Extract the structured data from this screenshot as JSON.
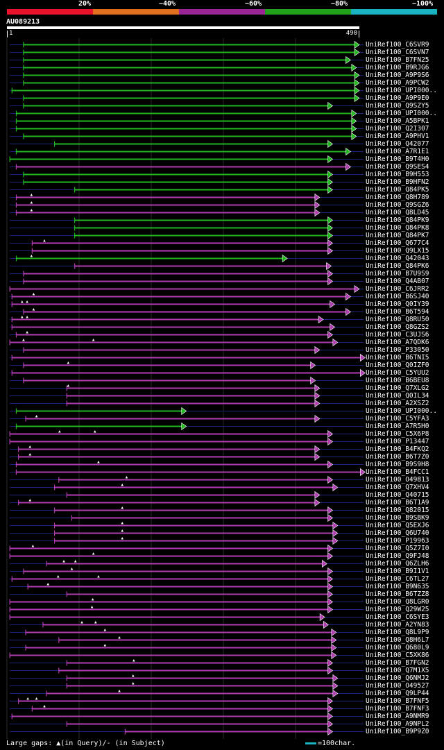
{
  "legend": {
    "labels": [
      "20%",
      "~40%",
      "~60%",
      "~80%",
      "~100%"
    ],
    "colors": [
      "#e8132b",
      "#e07020",
      "#9a2696",
      "#23a01b",
      "#1ab3c0"
    ]
  },
  "query": {
    "id": "AU089213",
    "start": "1",
    "end": "490"
  },
  "colors": {
    "green": "#22b81f",
    "magenta": "#b03eb0",
    "gap": "#1a237e",
    "grid": "#2a2a2a",
    "marker": "#ffffff"
  },
  "hits": [
    {
      "label": "UniRef100_C6SVR9",
      "color": "green",
      "s": 24,
      "e": 490
    },
    {
      "label": "UniRef100_C6SVN7",
      "color": "green",
      "s": 24,
      "e": 490
    },
    {
      "label": "UniRef100_B7FN25",
      "color": "green",
      "s": 24,
      "e": 478
    },
    {
      "label": "UniRef100_B9RJG6",
      "color": "green",
      "s": 24,
      "e": 486
    },
    {
      "label": "UniRef100_A9P9S6",
      "color": "green",
      "s": 24,
      "e": 490
    },
    {
      "label": "UniRef100_A9PCW2",
      "color": "green",
      "s": 24,
      "e": 490
    },
    {
      "label": "UniRef100_UPI000..",
      "color": "green",
      "s": 8,
      "e": 490
    },
    {
      "label": "UniRef100_A9P9E0",
      "color": "green",
      "s": 24,
      "e": 490
    },
    {
      "label": "UniRef100_Q9SZY5",
      "color": "green",
      "s": 24,
      "e": 453
    },
    {
      "label": "UniRef100_UPI000..",
      "color": "green",
      "s": 14,
      "e": 486
    },
    {
      "label": "UniRef100_A5BPK1",
      "color": "green",
      "s": 14,
      "e": 486
    },
    {
      "label": "UniRef100_Q2I307",
      "color": "green",
      "s": 14,
      "e": 486
    },
    {
      "label": "UniRef100_A9PHV1",
      "color": "green",
      "s": 24,
      "e": 486
    },
    {
      "label": "UniRef100_Q42077",
      "color": "green",
      "s": 67,
      "e": 453
    },
    {
      "label": "UniRef100_A7R1E1",
      "color": "green",
      "s": 14,
      "e": 478
    },
    {
      "label": "UniRef100_B9T4H0",
      "color": "green",
      "s": 5,
      "e": 453
    },
    {
      "label": "UniRef100_Q9SES4",
      "color": "magenta",
      "s": 14,
      "e": 478
    },
    {
      "label": "UniRef100_B9H553",
      "color": "green",
      "s": 24,
      "e": 453
    },
    {
      "label": "UniRef100_B9HFN2",
      "color": "green",
      "s": 24,
      "e": 453
    },
    {
      "label": "UniRef100_Q84PK5",
      "color": "green",
      "s": 95,
      "e": 453
    },
    {
      "label": "UniRef100_Q8H789",
      "color": "magenta",
      "s": 14,
      "e": 435,
      "m": [
        35
      ]
    },
    {
      "label": "UniRef100_Q9SGZ6",
      "color": "magenta",
      "s": 14,
      "e": 435,
      "m": [
        35
      ]
    },
    {
      "label": "UniRef100_Q8LD45",
      "color": "magenta",
      "s": 14,
      "e": 435,
      "m": [
        35
      ]
    },
    {
      "label": "UniRef100_Q84PK9",
      "color": "green",
      "s": 95,
      "e": 453
    },
    {
      "label": "UniRef100_Q84PK8",
      "color": "green",
      "s": 95,
      "e": 453
    },
    {
      "label": "UniRef100_Q84PK7",
      "color": "green",
      "s": 95,
      "e": 453
    },
    {
      "label": "UniRef100_Q677C4",
      "color": "magenta",
      "s": 36,
      "e": 453,
      "m": [
        53
      ]
    },
    {
      "label": "UniRef100_Q9LX15",
      "color": "magenta",
      "s": 36,
      "e": 453
    },
    {
      "label": "UniRef100_Q42043",
      "color": "green",
      "s": 14,
      "e": 390,
      "m": [
        35
      ]
    },
    {
      "label": "UniRef100_Q84PK6",
      "color": "magenta",
      "s": 95,
      "e": 451
    },
    {
      "label": "UniRef100_B7U9S9",
      "color": "magenta",
      "s": 24,
      "e": 453
    },
    {
      "label": "UniRef100_Q4AB07",
      "color": "magenta",
      "s": 24,
      "e": 453
    },
    {
      "label": "UniRef100_C6JRR2",
      "color": "magenta",
      "s": 5,
      "e": 490
    },
    {
      "label": "UniRef100_B6SJ40",
      "color": "magenta",
      "s": 8,
      "e": 478,
      "m": [
        38
      ]
    },
    {
      "label": "UniRef100_Q0IY39",
      "color": "magenta",
      "s": 8,
      "e": 456,
      "m": [
        22,
        29
      ]
    },
    {
      "label": "UniRef100_B6T594",
      "color": "magenta",
      "s": 24,
      "e": 478,
      "m": [
        38
      ]
    },
    {
      "label": "UniRef100_Q8RU50",
      "color": "magenta",
      "s": 8,
      "e": 440,
      "m": [
        22,
        29
      ]
    },
    {
      "label": "UniRef100_Q8GZS2",
      "color": "magenta",
      "s": 8,
      "e": 456
    },
    {
      "label": "UniRef100_C3UJS6",
      "color": "magenta",
      "s": 14,
      "e": 453,
      "m": [
        29
      ]
    },
    {
      "label": "UniRef100_A7QDK6",
      "color": "magenta",
      "s": 5,
      "e": 460,
      "m": [
        24,
        121
      ]
    },
    {
      "label": "UniRef100_P33050",
      "color": "magenta",
      "s": 24,
      "e": 435
    },
    {
      "label": "UniRef100_B6TNI5",
      "color": "magenta",
      "s": 8,
      "e": 498
    },
    {
      "label": "UniRef100_Q0IZF0",
      "color": "magenta",
      "s": 24,
      "e": 429,
      "m": [
        86
      ]
    },
    {
      "label": "UniRef100_C5YUU2",
      "color": "magenta",
      "s": 8,
      "e": 498
    },
    {
      "label": "UniRef100_B6BEU8",
      "color": "magenta",
      "s": 24,
      "e": 429
    },
    {
      "label": "UniRef100_Q7XLG2",
      "color": "magenta",
      "s": 84,
      "e": 435,
      "m": [
        86
      ]
    },
    {
      "label": "UniRef100_Q0IL34",
      "color": "magenta",
      "s": 84,
      "e": 435
    },
    {
      "label": "UniRef100_A2XSZ2",
      "color": "magenta",
      "s": 84,
      "e": 435
    },
    {
      "label": "UniRef100_UPI000..",
      "color": "green",
      "s": 14,
      "e": 250
    },
    {
      "label": "UniRef100_C5YFA3",
      "color": "magenta",
      "s": 27,
      "e": 435,
      "m": [
        42
      ]
    },
    {
      "label": "UniRef100_A7R5H0",
      "color": "green",
      "s": 14,
      "e": 250
    },
    {
      "label": "UniRef100_C5X6P8",
      "color": "magenta",
      "s": 5,
      "e": 453,
      "m": [
        74,
        123
      ]
    },
    {
      "label": "UniRef100_P13447",
      "color": "magenta",
      "s": 5,
      "e": 453
    },
    {
      "label": "UniRef100_B4FKQ2",
      "color": "magenta",
      "s": 17,
      "e": 435,
      "m": [
        33
      ]
    },
    {
      "label": "UniRef100_B6T7Z0",
      "color": "magenta",
      "s": 17,
      "e": 435,
      "m": [
        33
      ]
    },
    {
      "label": "UniRef100_B9S9H8",
      "color": "magenta",
      "s": 14,
      "e": 453,
      "m": [
        128
      ]
    },
    {
      "label": "UniRef100_B4FCC1",
      "color": "magenta",
      "s": 14,
      "e": 498
    },
    {
      "label": "UniRef100_O49813",
      "color": "magenta",
      "s": 73,
      "e": 453,
      "m": [
        167
      ]
    },
    {
      "label": "UniRef100_Q7XHV4",
      "color": "magenta",
      "s": 67,
      "e": 460,
      "m": [
        161
      ]
    },
    {
      "label": "UniRef100_Q40715",
      "color": "magenta",
      "s": 84,
      "e": 435
    },
    {
      "label": "UniRef100_B6T1A9",
      "color": "magenta",
      "s": 17,
      "e": 435,
      "m": [
        33
      ]
    },
    {
      "label": "UniRef100_Q82015",
      "color": "magenta",
      "s": 67,
      "e": 453,
      "m": [
        161
      ]
    },
    {
      "label": "UniRef100_B9SBK9",
      "color": "magenta",
      "s": 91,
      "e": 453
    },
    {
      "label": "UniRef100_Q5EXJ6",
      "color": "magenta",
      "s": 67,
      "e": 460,
      "m": [
        161
      ]
    },
    {
      "label": "UniRef100_Q6U740",
      "color": "magenta",
      "s": 67,
      "e": 460,
      "m": [
        161
      ]
    },
    {
      "label": "UniRef100_P19963",
      "color": "magenta",
      "s": 67,
      "e": 460,
      "m": [
        161
      ]
    },
    {
      "label": "UniRef100_Q5Z7I0",
      "color": "magenta",
      "s": 5,
      "e": 453,
      "m": [
        37
      ]
    },
    {
      "label": "UniRef100_Q9FJ48",
      "color": "magenta",
      "s": 5,
      "e": 453,
      "m": [
        121
      ]
    },
    {
      "label": "UniRef100_Q6ZLH6",
      "color": "magenta",
      "s": 56,
      "e": 445,
      "m": [
        80,
        96
      ]
    },
    {
      "label": "UniRef100_B9I1V1",
      "color": "magenta",
      "s": 24,
      "e": 453,
      "m": [
        91
      ]
    },
    {
      "label": "UniRef100_C6TL27",
      "color": "magenta",
      "s": 8,
      "e": 453,
      "m": [
        72,
        128
      ]
    },
    {
      "label": "UniRef100_B9N635",
      "color": "magenta",
      "s": 30,
      "e": 453,
      "m": [
        58
      ]
    },
    {
      "label": "UniRef100_B6TZZ8",
      "color": "magenta",
      "s": 84,
      "e": 453
    },
    {
      "label": "UniRef100_Q8LGR0",
      "color": "magenta",
      "s": 5,
      "e": 453,
      "m": [
        120
      ]
    },
    {
      "label": "UniRef100_Q29W25",
      "color": "magenta",
      "s": 5,
      "e": 453,
      "m": [
        119
      ]
    },
    {
      "label": "UniRef100_C6SYE3",
      "color": "magenta",
      "s": 5,
      "e": 442
    },
    {
      "label": "UniRef100_A2YN83",
      "color": "magenta",
      "s": 51,
      "e": 447,
      "m": [
        105,
        124
      ]
    },
    {
      "label": "UniRef100_Q8L9P9",
      "color": "magenta",
      "s": 27,
      "e": 458,
      "m": [
        137
      ]
    },
    {
      "label": "UniRef100_Q8H6L7",
      "color": "magenta",
      "s": 73,
      "e": 458,
      "m": [
        157
      ]
    },
    {
      "label": "UniRef100_Q680L9",
      "color": "magenta",
      "s": 27,
      "e": 458,
      "m": [
        137
      ]
    },
    {
      "label": "UniRef100_C5XK86",
      "color": "magenta",
      "s": 5,
      "e": 458
    },
    {
      "label": "UniRef100_B7FGN2",
      "color": "magenta",
      "s": 84,
      "e": 453,
      "m": [
        177
      ]
    },
    {
      "label": "UniRef100_Q7M1X5",
      "color": "magenta",
      "s": 73,
      "e": 453
    },
    {
      "label": "UniRef100_Q6NMJ2",
      "color": "magenta",
      "s": 84,
      "e": 460,
      "m": [
        176
      ]
    },
    {
      "label": "UniRef100_O49527",
      "color": "magenta",
      "s": 84,
      "e": 460,
      "m": [
        176
      ]
    },
    {
      "label": "UniRef100_Q9LP44",
      "color": "magenta",
      "s": 56,
      "e": 460,
      "m": [
        157
      ]
    },
    {
      "label": "UniRef100_B7FNF5",
      "color": "magenta",
      "s": 17,
      "e": 453,
      "m": [
        30,
        42
      ]
    },
    {
      "label": "UniRef100_B7FNF3",
      "color": "magenta",
      "s": 36,
      "e": 453,
      "m": [
        53
      ]
    },
    {
      "label": "UniRef100_A9NMR9",
      "color": "magenta",
      "s": 8,
      "e": 453
    },
    {
      "label": "UniRef100_A9NPL2",
      "color": "magenta",
      "s": 84,
      "e": 453
    },
    {
      "label": "UniRef100_B9P9Z0",
      "color": "magenta",
      "s": 165,
      "e": 453
    }
  ],
  "footer": {
    "text": "Large gaps: ▲(in Query)/- (in Subject)",
    "scale_text": "=100char.",
    "scale_color": "#1ab3c0"
  }
}
